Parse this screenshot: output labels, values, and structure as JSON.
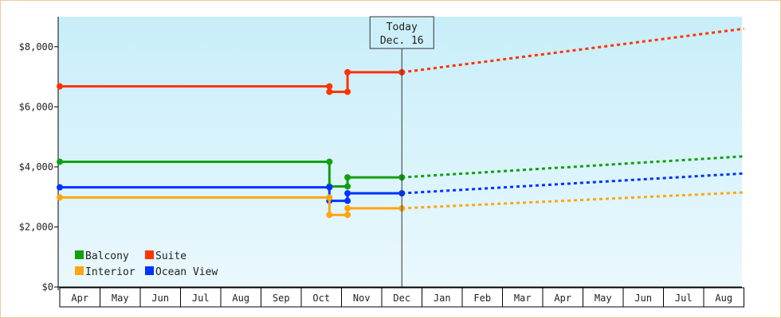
{
  "chart_data": {
    "type": "line",
    "title": "",
    "xlabel": "",
    "ylabel": "",
    "ylim": [
      0,
      9000
    ],
    "y_ticks": [
      "$0",
      "$2,000",
      "$4,000",
      "$6,000",
      "$8,000"
    ],
    "y_tick_values": [
      0,
      2000,
      4000,
      6000,
      8000
    ],
    "months": [
      "Apr",
      "May",
      "Jun",
      "Jul",
      "Aug",
      "Sep",
      "Oct",
      "Nov",
      "Dec",
      "Jan",
      "Feb",
      "Mar",
      "Apr",
      "May",
      "Jun",
      "Jul",
      "Aug"
    ],
    "today": {
      "line1": "Today",
      "line2": "Dec. 16",
      "month_pos": 8.5
    },
    "grid": false,
    "background_gradient": [
      "#c8eef9",
      "#eaf8fd"
    ],
    "legend_position": "bottom-left",
    "series": [
      {
        "name": "Suite",
        "color": "#ff3300",
        "actual": [
          [
            0,
            6680
          ],
          [
            6.7,
            6680
          ],
          [
            6.7,
            6500
          ],
          [
            7.15,
            6500
          ],
          [
            7.15,
            7150
          ],
          [
            8.5,
            7150
          ]
        ],
        "markers": [
          [
            0,
            6680
          ],
          [
            6.7,
            6680
          ],
          [
            6.7,
            6500
          ],
          [
            7.15,
            6500
          ],
          [
            7.15,
            7150
          ],
          [
            8.5,
            7150
          ]
        ],
        "forecast": [
          [
            8.5,
            7150
          ],
          [
            17,
            8600
          ]
        ]
      },
      {
        "name": "Balcony",
        "color": "#11a011",
        "actual": [
          [
            0,
            4170
          ],
          [
            6.7,
            4170
          ],
          [
            6.7,
            3350
          ],
          [
            7.15,
            3350
          ],
          [
            7.15,
            3650
          ],
          [
            8.5,
            3650
          ]
        ],
        "markers": [
          [
            0,
            4170
          ],
          [
            6.7,
            4170
          ],
          [
            6.7,
            3350
          ],
          [
            7.15,
            3350
          ],
          [
            7.15,
            3650
          ],
          [
            8.5,
            3650
          ]
        ],
        "forecast": [
          [
            8.5,
            3650
          ],
          [
            17,
            4350
          ]
        ]
      },
      {
        "name": "Ocean View",
        "color": "#0033ff",
        "actual": [
          [
            0,
            3320
          ],
          [
            6.7,
            3320
          ],
          [
            6.7,
            2870
          ],
          [
            7.15,
            2870
          ],
          [
            7.15,
            3120
          ],
          [
            8.5,
            3120
          ]
        ],
        "markers": [
          [
            0,
            3320
          ],
          [
            6.7,
            3320
          ],
          [
            6.7,
            2870
          ],
          [
            7.15,
            2870
          ],
          [
            7.15,
            3120
          ],
          [
            8.5,
            3120
          ]
        ],
        "forecast": [
          [
            8.5,
            3120
          ],
          [
            17,
            3780
          ]
        ]
      },
      {
        "name": "Interior",
        "color": "#ffa511",
        "actual": [
          [
            0,
            2980
          ],
          [
            6.7,
            2980
          ],
          [
            6.7,
            2400
          ],
          [
            7.15,
            2400
          ],
          [
            7.15,
            2620
          ],
          [
            8.5,
            2620
          ]
        ],
        "markers": [
          [
            0,
            2980
          ],
          [
            6.7,
            2980
          ],
          [
            6.7,
            2400
          ],
          [
            7.15,
            2400
          ],
          [
            7.15,
            2620
          ],
          [
            8.5,
            2620
          ]
        ],
        "forecast": [
          [
            8.5,
            2620
          ],
          [
            17,
            3150
          ]
        ]
      }
    ],
    "legend": [
      {
        "name": "Balcony",
        "color": "#11a011"
      },
      {
        "name": "Suite",
        "color": "#ff3300"
      },
      {
        "name": "Interior",
        "color": "#ffa511"
      },
      {
        "name": "Ocean View",
        "color": "#0033ff"
      }
    ]
  }
}
